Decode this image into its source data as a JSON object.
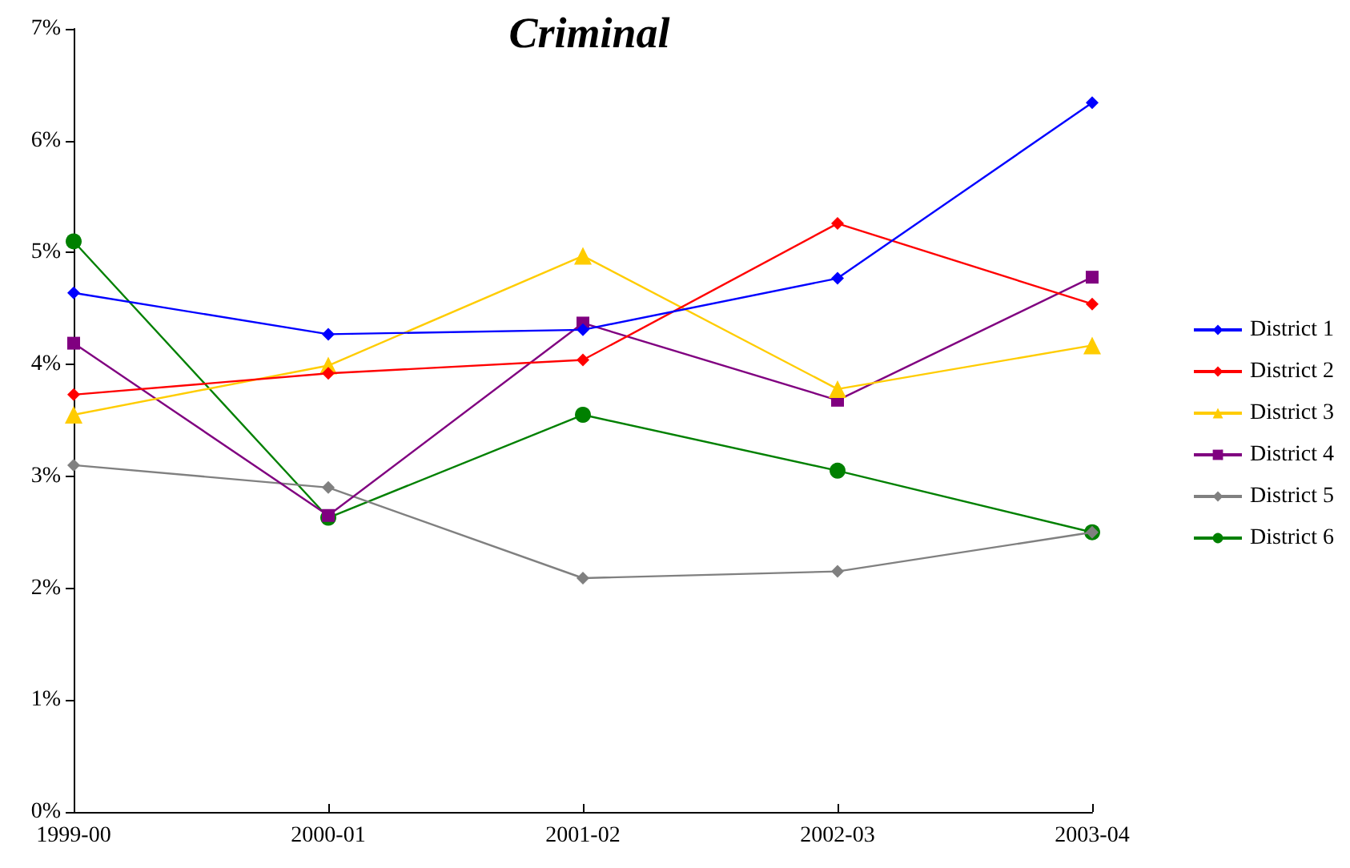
{
  "chart_data": {
    "type": "line",
    "title": "Criminal",
    "categories": [
      "1999-00",
      "2000-01",
      "2001-02",
      "2002-03",
      "2003-04"
    ],
    "series": [
      {
        "name": "District 1",
        "color": "#0000ff",
        "marker": "diamond",
        "values": [
          4.64,
          4.27,
          4.31,
          4.77,
          6.34
        ]
      },
      {
        "name": "District 2",
        "color": "#ff0000",
        "marker": "diamond",
        "values": [
          3.73,
          3.92,
          4.04,
          5.26,
          4.54
        ]
      },
      {
        "name": "District 3",
        "color": "#ffcc00",
        "marker": "triangle",
        "values": [
          3.55,
          3.99,
          4.97,
          3.78,
          4.17
        ]
      },
      {
        "name": "District 4",
        "color": "#800080",
        "marker": "square",
        "values": [
          4.19,
          2.65,
          4.37,
          3.68,
          4.78
        ]
      },
      {
        "name": "District 5",
        "color": "#808080",
        "marker": "diamond",
        "values": [
          3.1,
          2.9,
          2.09,
          2.15,
          2.5
        ]
      },
      {
        "name": "District 6",
        "color": "#008000",
        "marker": "circle",
        "values": [
          5.1,
          2.63,
          3.55,
          3.05,
          2.5
        ]
      }
    ],
    "ylim": [
      0,
      7
    ],
    "yticks": [
      {
        "value": 0,
        "label": "0%"
      },
      {
        "value": 1,
        "label": "1%"
      },
      {
        "value": 2,
        "label": "2%"
      },
      {
        "value": 3,
        "label": "3%"
      },
      {
        "value": 4,
        "label": "4%"
      },
      {
        "value": 5,
        "label": "5%"
      },
      {
        "value": 6,
        "label": "6%"
      },
      {
        "value": 7,
        "label": "7%"
      }
    ],
    "grid": false,
    "legend": "right",
    "line_style": "solid"
  }
}
